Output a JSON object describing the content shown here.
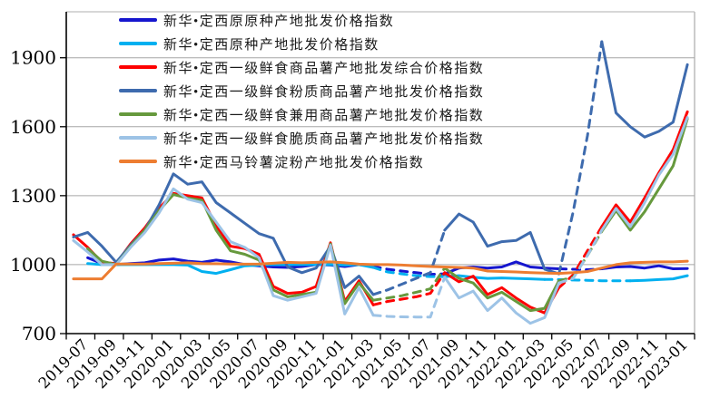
{
  "chart_data": {
    "type": "line",
    "title": "",
    "xlabel": "",
    "ylabel": "",
    "ylim": [
      700,
      2100
    ],
    "y_ticks": [
      700,
      1000,
      1300,
      1600,
      1900
    ],
    "x_tick_labels": [
      "2019-07",
      "2019-09",
      "2019-11",
      "2020-01",
      "2020-03",
      "2020-05",
      "2020-07",
      "2020-09",
      "2020-11",
      "2021-01",
      "2021-03",
      "2021-05",
      "2021-07",
      "2021-09",
      "2021-11",
      "2022-01",
      "2022-03",
      "2022-05",
      "2022-07",
      "2022-09",
      "2022-11",
      "2023-01"
    ],
    "x": [
      "2019-07",
      "2019-08",
      "2019-09",
      "2019-10",
      "2019-11",
      "2019-12",
      "2020-01",
      "2020-02",
      "2020-03",
      "2020-04",
      "2020-05",
      "2020-06",
      "2020-07",
      "2020-08",
      "2020-09",
      "2020-10",
      "2020-11",
      "2020-12",
      "2021-01",
      "2021-02",
      "2021-03",
      "2021-04",
      "2021-05",
      "2021-06",
      "2021-07",
      "2021-08",
      "2021-09",
      "2021-10",
      "2021-11",
      "2021-12",
      "2022-01",
      "2022-02",
      "2022-03",
      "2022-04",
      "2022-05",
      "2022-06",
      "2022-07",
      "2022-08",
      "2022-09",
      "2022-10",
      "2022-11",
      "2022-12",
      "2023-01",
      "2023-02"
    ],
    "grid": "horizontal",
    "legend_position": "top-left-inside",
    "note_dashed_segments": "dash_ranges are [startIndex,endIndex] month spans drawn with dashed strokes (estimated data)",
    "series": [
      {
        "name": "新华•定西原原种产地批发价格指数",
        "color": "#1616CE",
        "dash_ranges": [
          [
            21,
            26
          ],
          [
            34,
            37
          ]
        ],
        "values": [
          null,
          1030,
          1005,
          1000,
          1005,
          1008,
          1020,
          1025,
          1015,
          1010,
          1020,
          1012,
          1000,
          995,
          990,
          988,
          992,
          1000,
          998,
          992,
          1000,
          992,
          980,
          972,
          965,
          958,
          960,
          985,
          990,
          985,
          990,
          1012,
          990,
          985,
          982,
          980,
          978,
          982,
          990,
          992,
          985,
          995,
          982,
          983
        ]
      },
      {
        "name": "新华•定西原种产地批发价格指数",
        "color": "#00B0F0",
        "dash_ranges": [
          [
            21,
            26
          ],
          [
            33,
            39
          ]
        ],
        "values": [
          null,
          1005,
          1000,
          1000,
          1000,
          1000,
          1000,
          1000,
          998,
          970,
          962,
          978,
          995,
          998,
          1000,
          1000,
          1000,
          1000,
          1000,
          998,
          1000,
          988,
          968,
          960,
          952,
          948,
          948,
          952,
          945,
          940,
          942,
          940,
          938,
          936,
          935,
          933,
          932,
          930,
          930,
          930,
          932,
          935,
          938,
          952
        ]
      },
      {
        "name": "新华•定西一级鲜食商品薯产地批发综合价格指数",
        "color": "#FE0000",
        "dash_ranges": [
          [
            21,
            26
          ],
          [
            34,
            37
          ]
        ],
        "values": [
          1130,
          1075,
          1010,
          1005,
          1090,
          1160,
          1245,
          1310,
          1300,
          1290,
          1170,
          1080,
          1070,
          1045,
          905,
          875,
          880,
          905,
          1095,
          840,
          930,
          825,
          840,
          850,
          860,
          875,
          965,
          925,
          950,
          870,
          900,
          855,
          815,
          790,
          900,
          955,
          1060,
          1165,
          1260,
          1185,
          1290,
          1400,
          1500,
          1665
        ]
      },
      {
        "name": "新华•定西一级鲜食粉质商品薯产地批发价格指数",
        "color": "#3E6BAE",
        "dash_ranges": [
          [
            21,
            26
          ],
          [
            34,
            37
          ]
        ],
        "values": [
          1120,
          1140,
          1080,
          1010,
          1085,
          1150,
          1260,
          1395,
          1350,
          1360,
          1270,
          1225,
          1180,
          1135,
          1115,
          990,
          965,
          985,
          1080,
          900,
          950,
          870,
          890,
          915,
          940,
          965,
          1150,
          1220,
          1185,
          1080,
          1100,
          1105,
          1140,
          980,
          960,
          1230,
          1560,
          1970,
          1660,
          1600,
          1555,
          1580,
          1620,
          1870
        ]
      },
      {
        "name": "新华•定西一级鲜食兼用商品薯产地批发价格指数",
        "color": "#66993D",
        "dash_ranges": [
          [
            21,
            26
          ],
          [
            34,
            37
          ]
        ],
        "values": [
          null,
          1070,
          1015,
          1000,
          1080,
          1150,
          1235,
          1305,
          1290,
          1280,
          1150,
          1060,
          1045,
          1020,
          890,
          860,
          870,
          880,
          1090,
          830,
          920,
          845,
          855,
          865,
          880,
          895,
          985,
          940,
          920,
          855,
          880,
          840,
          800,
          810,
          930,
          945,
          1040,
          1145,
          1235,
          1150,
          1230,
          1330,
          1430,
          1635
        ]
      },
      {
        "name": "新华•定西一级鲜食脆质商品薯产地批发价格指数",
        "color": "#9DC3E6",
        "dash_ranges": [
          [
            21,
            26
          ],
          [
            34,
            37
          ]
        ],
        "values": [
          1105,
          1055,
          1000,
          1000,
          1075,
          1140,
          1225,
          1330,
          1285,
          1270,
          1185,
          1100,
          1075,
          1030,
          865,
          845,
          860,
          875,
          1085,
          785,
          900,
          780,
          775,
          773,
          772,
          772,
          945,
          855,
          885,
          800,
          855,
          790,
          745,
          770,
          920,
          940,
          1040,
          1150,
          1245,
          1165,
          1270,
          1390,
          1480,
          1640
        ]
      },
      {
        "name": "新华•定西马铃薯淀粉产地批发价格指数",
        "color": "#ED7D31",
        "dash_ranges": [],
        "values": [
          938,
          938,
          938,
          1003,
          1003,
          1003,
          1005,
          1006,
          1008,
          1005,
          1004,
          1003,
          1002,
          1003,
          1006,
          1010,
          1008,
          1010,
          1012,
          1008,
          1002,
          1000,
          1000,
          998,
          995,
          992,
          990,
          988,
          985,
          972,
          970,
          968,
          965,
          963,
          962,
          965,
          970,
          985,
          1000,
          1008,
          1010,
          1012,
          1012,
          1015
        ]
      }
    ],
    "style": {
      "axis_color": "#000000",
      "gridline_color": "#A6A6A6",
      "border_color": "#BFBFBF",
      "background": "#FFFFFF"
    }
  }
}
